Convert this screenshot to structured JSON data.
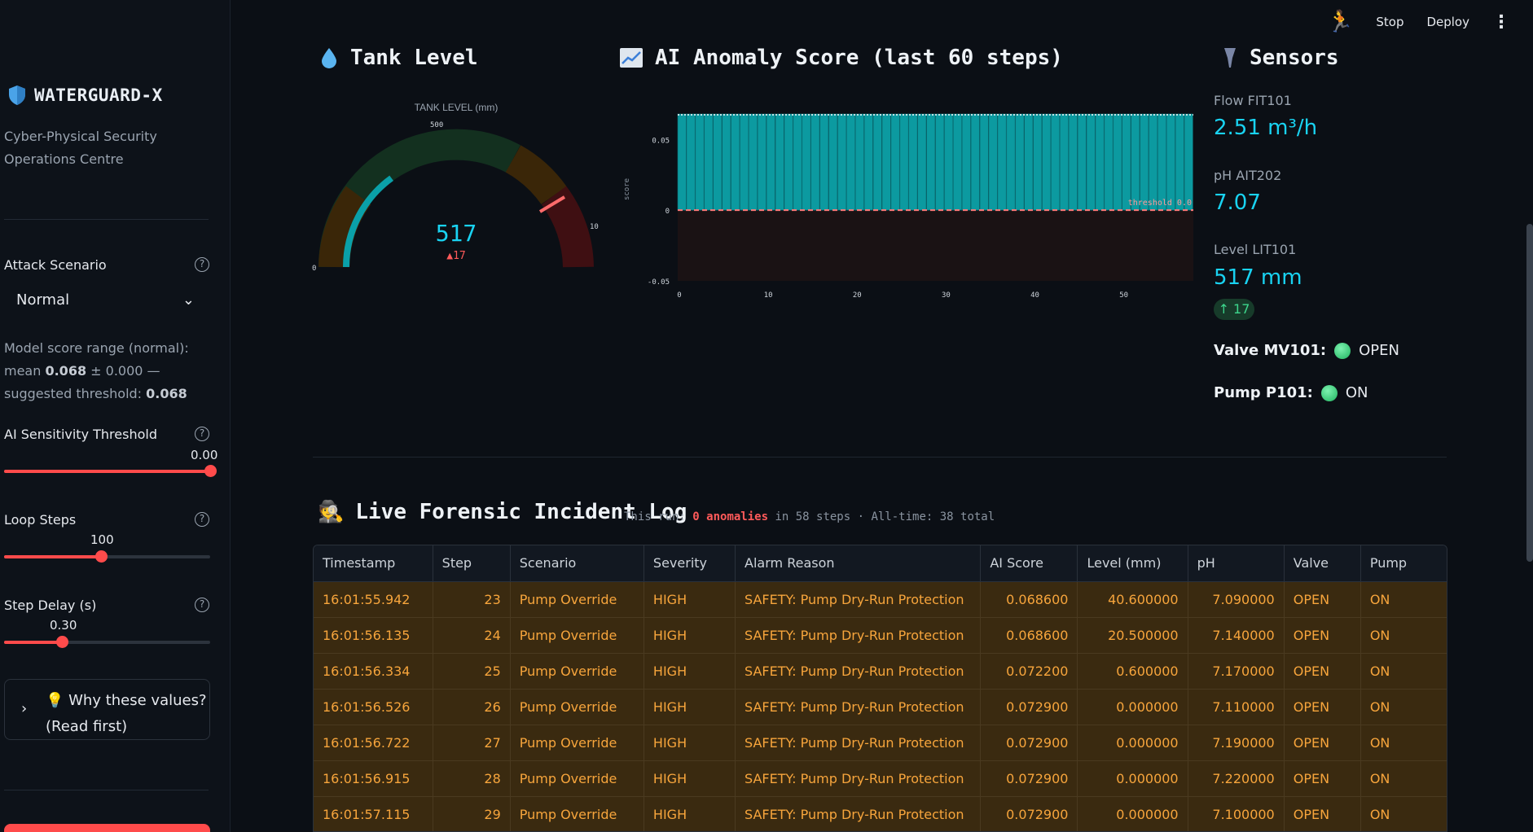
{
  "sidebar": {
    "brand_title": "WATERGUARD-X",
    "brand_subtitle": "Cyber-Physical Security Operations Centre",
    "attack_scenario": {
      "label": "Attack Scenario",
      "value": "Normal"
    },
    "model_note": {
      "prefix": "Model score range (normal): mean ",
      "mean": "0.068",
      "middle": " ± 0.000 — suggested threshold: ",
      "threshold": "0.068"
    },
    "sensitivity": {
      "label": "AI Sensitivity Threshold",
      "value": "0.00",
      "fraction": 1.0
    },
    "loop_steps": {
      "label": "Loop Steps",
      "value": "100",
      "fraction": 0.47
    },
    "step_delay": {
      "label": "Step Delay (s)",
      "value": "0.30",
      "fraction": 0.28
    },
    "expander": {
      "line1": "💡 Why these values?",
      "line2": "(Read first)"
    }
  },
  "topbar": {
    "stop": "Stop",
    "deploy": "Deploy"
  },
  "tank": {
    "title": "Tank Level",
    "gauge_title": "TANK LEVEL (mm)",
    "value": "517",
    "delta": "▲17",
    "tick_top": "500",
    "tick_left": "0",
    "tick_right": "10",
    "value_number": 517,
    "max": 1000
  },
  "anomaly": {
    "title": "AI Anomaly Score (last 60 steps)",
    "chart_data": {
      "type": "bar",
      "title": "AI Anomaly Score (last 60 steps)",
      "ylabel": "score",
      "xlabel": "",
      "x_ticks": [
        "0",
        "10",
        "20",
        "30",
        "40",
        "50"
      ],
      "y_ticks": [
        "0.05",
        "0",
        "-0.05"
      ],
      "ylim": [
        -0.05,
        0.068
      ],
      "values": [
        0.068,
        0.068,
        0.068,
        0.068,
        0.068,
        0.068,
        0.068,
        0.068,
        0.068,
        0.068,
        0.068,
        0.068,
        0.068,
        0.068,
        0.068,
        0.068,
        0.068,
        0.068,
        0.068,
        0.068,
        0.068,
        0.068,
        0.068,
        0.068,
        0.068,
        0.068,
        0.068,
        0.068,
        0.068,
        0.068,
        0.068,
        0.068,
        0.068,
        0.068,
        0.068,
        0.068,
        0.068,
        0.068,
        0.068,
        0.068,
        0.068,
        0.068,
        0.068,
        0.068,
        0.068,
        0.068,
        0.068,
        0.068,
        0.068,
        0.068,
        0.068,
        0.068,
        0.068,
        0.068,
        0.068,
        0.068,
        0.068,
        0.068
      ],
      "threshold": 0.0,
      "threshold_label": "threshold 0.0"
    }
  },
  "sensors": {
    "title": "Sensors",
    "flow": {
      "label": "Flow FIT101",
      "value": "2.51 m³/h"
    },
    "ph": {
      "label": "pH AIT202",
      "value": "7.07"
    },
    "level": {
      "label": "Level LIT101",
      "value": "517 mm",
      "delta": "↑ 17"
    },
    "valve": {
      "label": "Valve MV101:",
      "status": "OPEN"
    },
    "pump": {
      "label": "Pump P101:",
      "status": "ON"
    }
  },
  "log": {
    "title": "Live Forensic Incident Log",
    "sub_prefix": "This run: ",
    "sub_anomalies": "0 anomalies",
    "sub_suffix": " in 58 steps · All-time: 38 total",
    "columns": [
      "Timestamp",
      "Step",
      "Scenario",
      "Severity",
      "Alarm Reason",
      "AI Score",
      "Level (mm)",
      "pH",
      "Valve",
      "Pump"
    ],
    "rows": [
      [
        "16:01:55.942",
        "23",
        "Pump Override",
        "HIGH",
        "SAFETY: Pump Dry-Run Protection",
        "0.068600",
        "40.600000",
        "7.090000",
        "OPEN",
        "ON"
      ],
      [
        "16:01:56.135",
        "24",
        "Pump Override",
        "HIGH",
        "SAFETY: Pump Dry-Run Protection",
        "0.068600",
        "20.500000",
        "7.140000",
        "OPEN",
        "ON"
      ],
      [
        "16:01:56.334",
        "25",
        "Pump Override",
        "HIGH",
        "SAFETY: Pump Dry-Run Protection",
        "0.072200",
        "0.600000",
        "7.170000",
        "OPEN",
        "ON"
      ],
      [
        "16:01:56.526",
        "26",
        "Pump Override",
        "HIGH",
        "SAFETY: Pump Dry-Run Protection",
        "0.072900",
        "0.000000",
        "7.110000",
        "OPEN",
        "ON"
      ],
      [
        "16:01:56.722",
        "27",
        "Pump Override",
        "HIGH",
        "SAFETY: Pump Dry-Run Protection",
        "0.072900",
        "0.000000",
        "7.190000",
        "OPEN",
        "ON"
      ],
      [
        "16:01:56.915",
        "28",
        "Pump Override",
        "HIGH",
        "SAFETY: Pump Dry-Run Protection",
        "0.072900",
        "0.000000",
        "7.220000",
        "OPEN",
        "ON"
      ],
      [
        "16:01:57.115",
        "29",
        "Pump Override",
        "HIGH",
        "SAFETY: Pump Dry-Run Protection",
        "0.072900",
        "0.000000",
        "7.100000",
        "OPEN",
        "ON"
      ]
    ]
  }
}
